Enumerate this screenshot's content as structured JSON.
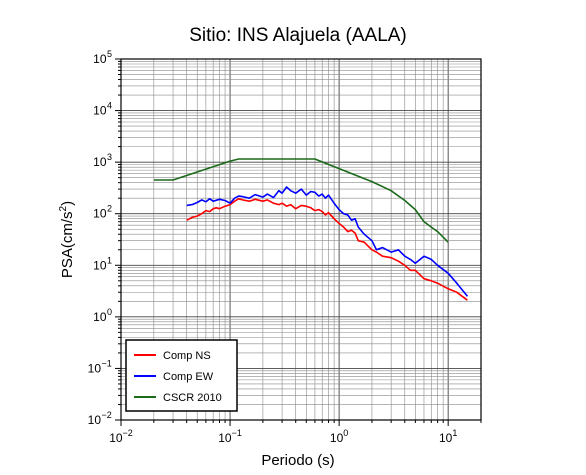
{
  "chart_data": {
    "type": "line",
    "title": "Sitio: INS Alajuela (AALA)",
    "xlabel": "Periodo (s)",
    "ylabel": "PSA(cm/s2)",
    "xscale": "log",
    "yscale": "log",
    "xlim": [
      0.01,
      20
    ],
    "ylim": [
      0.01,
      100000
    ],
    "x_major_exponents": [
      -2,
      -1,
      0,
      1
    ],
    "y_major_exponents": [
      -2,
      -1,
      0,
      1,
      2,
      3,
      4,
      5
    ],
    "grid": true,
    "legend_position": "bottom-left",
    "series": [
      {
        "name": "Comp NS",
        "color": "#ff0000",
        "points": [
          [
            0.04,
            75
          ],
          [
            0.045,
            85
          ],
          [
            0.05,
            90
          ],
          [
            0.055,
            100
          ],
          [
            0.06,
            115
          ],
          [
            0.065,
            110
          ],
          [
            0.07,
            125
          ],
          [
            0.075,
            130
          ],
          [
            0.08,
            125
          ],
          [
            0.09,
            140
          ],
          [
            0.1,
            150
          ],
          [
            0.11,
            175
          ],
          [
            0.12,
            195
          ],
          [
            0.13,
            185
          ],
          [
            0.15,
            175
          ],
          [
            0.17,
            190
          ],
          [
            0.2,
            175
          ],
          [
            0.22,
            185
          ],
          [
            0.25,
            160
          ],
          [
            0.28,
            150
          ],
          [
            0.3,
            160
          ],
          [
            0.33,
            140
          ],
          [
            0.36,
            150
          ],
          [
            0.4,
            125
          ],
          [
            0.45,
            145
          ],
          [
            0.5,
            140
          ],
          [
            0.55,
            130
          ],
          [
            0.6,
            115
          ],
          [
            0.65,
            120
          ],
          [
            0.7,
            110
          ],
          [
            0.75,
            95
          ],
          [
            0.8,
            105
          ],
          [
            0.9,
            80
          ],
          [
            1.0,
            65
          ],
          [
            1.1,
            55
          ],
          [
            1.2,
            45
          ],
          [
            1.3,
            48
          ],
          [
            1.4,
            42
          ],
          [
            1.5,
            30
          ],
          [
            1.7,
            28
          ],
          [
            2.0,
            20
          ],
          [
            2.2,
            18
          ],
          [
            2.5,
            15
          ],
          [
            3.0,
            14
          ],
          [
            3.5,
            12
          ],
          [
            4.0,
            10
          ],
          [
            4.5,
            8
          ],
          [
            5.0,
            8
          ],
          [
            6.0,
            5.5
          ],
          [
            7.0,
            5
          ],
          [
            8.0,
            4.5
          ],
          [
            10.0,
            3.5
          ],
          [
            12.0,
            3
          ],
          [
            15.0,
            2.1
          ]
        ]
      },
      {
        "name": "Comp EW",
        "color": "#0000ff",
        "points": [
          [
            0.04,
            145
          ],
          [
            0.045,
            150
          ],
          [
            0.05,
            165
          ],
          [
            0.055,
            185
          ],
          [
            0.06,
            170
          ],
          [
            0.065,
            195
          ],
          [
            0.07,
            175
          ],
          [
            0.08,
            190
          ],
          [
            0.09,
            180
          ],
          [
            0.1,
            160
          ],
          [
            0.11,
            200
          ],
          [
            0.12,
            220
          ],
          [
            0.13,
            215
          ],
          [
            0.15,
            200
          ],
          [
            0.17,
            235
          ],
          [
            0.2,
            210
          ],
          [
            0.22,
            240
          ],
          [
            0.25,
            205
          ],
          [
            0.28,
            280
          ],
          [
            0.3,
            250
          ],
          [
            0.33,
            330
          ],
          [
            0.36,
            280
          ],
          [
            0.4,
            250
          ],
          [
            0.45,
            300
          ],
          [
            0.5,
            230
          ],
          [
            0.55,
            270
          ],
          [
            0.6,
            260
          ],
          [
            0.65,
            220
          ],
          [
            0.7,
            240
          ],
          [
            0.75,
            200
          ],
          [
            0.8,
            230
          ],
          [
            0.9,
            160
          ],
          [
            1.0,
            120
          ],
          [
            1.1,
            100
          ],
          [
            1.2,
            95
          ],
          [
            1.3,
            75
          ],
          [
            1.4,
            80
          ],
          [
            1.5,
            55
          ],
          [
            1.7,
            40
          ],
          [
            2.0,
            30
          ],
          [
            2.2,
            20
          ],
          [
            2.5,
            22
          ],
          [
            3.0,
            18
          ],
          [
            3.5,
            20
          ],
          [
            4.0,
            15
          ],
          [
            4.5,
            13
          ],
          [
            5.0,
            11
          ],
          [
            6.0,
            15
          ],
          [
            7.0,
            13
          ],
          [
            8.0,
            10
          ],
          [
            10.0,
            7
          ],
          [
            12.0,
            4.5
          ],
          [
            15.0,
            2.5
          ]
        ]
      },
      {
        "name": "CSCR 2010",
        "color": "#1a6a1a",
        "points": [
          [
            0.02,
            450
          ],
          [
            0.03,
            450
          ],
          [
            0.1,
            1050
          ],
          [
            0.12,
            1150
          ],
          [
            0.6,
            1150
          ],
          [
            1.0,
            750
          ],
          [
            2.0,
            420
          ],
          [
            3.0,
            280
          ],
          [
            4.0,
            180
          ],
          [
            5.0,
            120
          ],
          [
            6.0,
            70
          ],
          [
            7.0,
            55
          ],
          [
            8.0,
            45
          ],
          [
            10.0,
            28
          ]
        ]
      }
    ]
  }
}
